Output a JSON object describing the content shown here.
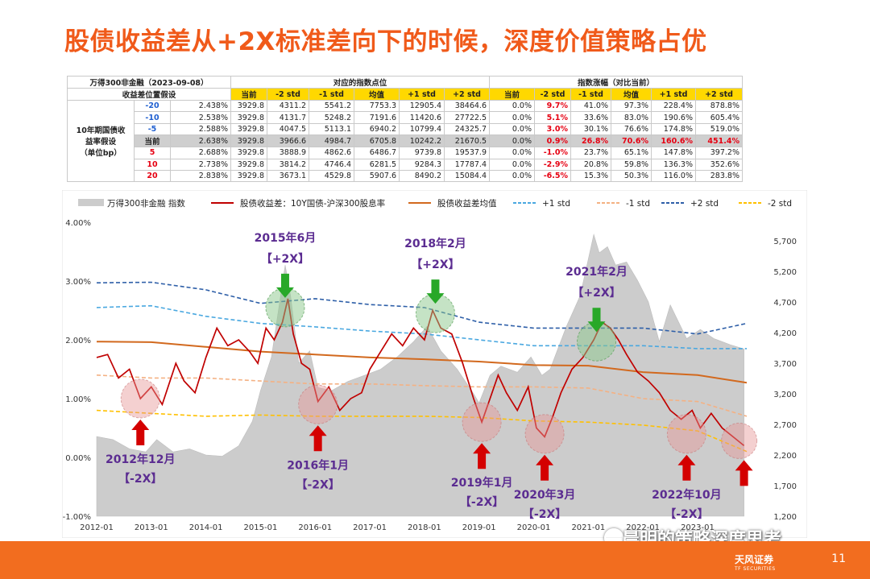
{
  "title": "股债收益差从+2X标准差向下的时候，深度价值策略占优",
  "table": {
    "index_label": "万得300非金融（2023-09-08）",
    "sec_points": "对应的指数点位",
    "sec_change": "指数涨幅（对比当前）",
    "assump_label": "收益差位置假设",
    "rowgroup_label_1": "10年期国债收",
    "rowgroup_label_2": "益率假设",
    "rowgroup_label_3": "（单位bp）",
    "cols": [
      "当前",
      "-2 std",
      "-1 std",
      "均值",
      "+1 std",
      "+2 std"
    ],
    "rows": [
      {
        "bp": "-20",
        "yield": "2.438%",
        "points": [
          "3929.8",
          "4311.2",
          "5541.2",
          "7753.3",
          "12905.4",
          "38464.6"
        ],
        "changes": [
          "0.0%",
          "9.7%",
          "41.0%",
          "97.3%",
          "228.4%",
          "878.8%"
        ]
      },
      {
        "bp": "-10",
        "yield": "2.538%",
        "points": [
          "3929.8",
          "4131.7",
          "5248.2",
          "7191.6",
          "11420.6",
          "27722.5"
        ],
        "changes": [
          "0.0%",
          "5.1%",
          "33.6%",
          "83.0%",
          "190.6%",
          "605.4%"
        ]
      },
      {
        "bp": "-5",
        "yield": "2.588%",
        "points": [
          "3929.8",
          "4047.5",
          "5113.1",
          "6940.2",
          "10799.4",
          "24325.7"
        ],
        "changes": [
          "0.0%",
          "3.0%",
          "30.1%",
          "76.6%",
          "174.8%",
          "519.0%"
        ]
      },
      {
        "bp": "当前",
        "yield": "2.638%",
        "points": [
          "3929.8",
          "3966.6",
          "4984.7",
          "6705.8",
          "10242.2",
          "21670.5"
        ],
        "changes": [
          "0.0%",
          "0.9%",
          "26.8%",
          "70.6%",
          "160.6%",
          "451.4%"
        ]
      },
      {
        "bp": "5",
        "yield": "2.688%",
        "points": [
          "3929.8",
          "3888.9",
          "4862.6",
          "6486.7",
          "9739.8",
          "19537.9"
        ],
        "changes": [
          "0.0%",
          "-1.0%",
          "23.7%",
          "65.1%",
          "147.8%",
          "397.2%"
        ]
      },
      {
        "bp": "10",
        "yield": "2.738%",
        "points": [
          "3929.8",
          "3814.2",
          "4746.4",
          "6281.5",
          "9284.3",
          "17787.4"
        ],
        "changes": [
          "0.0%",
          "-2.9%",
          "20.8%",
          "59.8%",
          "136.3%",
          "352.6%"
        ]
      },
      {
        "bp": "20",
        "yield": "2.838%",
        "points": [
          "3929.8",
          "3673.1",
          "4529.8",
          "5907.6",
          "8490.2",
          "15084.4"
        ],
        "changes": [
          "0.0%",
          "-6.5%",
          "15.3%",
          "50.3%",
          "116.0%",
          "283.8%"
        ]
      }
    ]
  },
  "chart_data": {
    "type": "line",
    "legend": [
      "万得300非金融 指数",
      "股债收益差：10Y国债-沪深300股息率",
      "股债收益差均值",
      "+1 std",
      "-1 std",
      "+2 std",
      "-2 std"
    ],
    "x_ticks": [
      "2012-01",
      "2013-01",
      "2014-01",
      "2015-01",
      "2016-01",
      "2017-01",
      "2018-01",
      "2019-01",
      "2020-01",
      "2021-01",
      "2022-01",
      "2023-01"
    ],
    "y_left_ticks": [
      "4.00%",
      "3.00%",
      "2.00%",
      "1.00%",
      "0.00%",
      "-1.00%"
    ],
    "y_left_range": [
      -1.0,
      4.0
    ],
    "y_right_ticks": [
      "5,700",
      "5,200",
      "4,700",
      "4,200",
      "3,700",
      "3,200",
      "2,700",
      "2,200",
      "1,700",
      "1,200"
    ],
    "y_right_range": [
      1200,
      6000
    ],
    "x_range": [
      2012.0,
      2023.9
    ],
    "colors": {
      "index": "#cccccc",
      "spread": "#c00000",
      "mean": "#d2691e",
      "p1": "#4aa8e0",
      "m1": "#f4b183",
      "p2": "#2e5fa8",
      "m2": "#ffc000"
    },
    "index_series": {
      "x": [
        2012.0,
        2012.3,
        2012.6,
        2012.9,
        2013.1,
        2013.4,
        2013.7,
        2014.0,
        2014.3,
        2014.6,
        2014.85,
        2015.0,
        2015.2,
        2015.35,
        2015.45,
        2015.55,
        2015.7,
        2015.9,
        2016.05,
        2016.3,
        2016.6,
        2016.9,
        2017.2,
        2017.5,
        2017.8,
        2018.05,
        2018.3,
        2018.6,
        2018.9,
        2019.0,
        2019.2,
        2019.4,
        2019.7,
        2019.95,
        2020.15,
        2020.3,
        2020.6,
        2020.85,
        2021.1,
        2021.2,
        2021.35,
        2021.5,
        2021.7,
        2021.9,
        2022.1,
        2022.3,
        2022.5,
        2022.8,
        2023.05,
        2023.3,
        2023.6,
        2023.85
      ],
      "y": [
        2500,
        2450,
        2300,
        2250,
        2450,
        2250,
        2300,
        2200,
        2180,
        2350,
        2750,
        3250,
        3800,
        4700,
        5300,
        4800,
        3700,
        3900,
        3300,
        3250,
        3400,
        3500,
        3600,
        3800,
        4050,
        4300,
        3900,
        3600,
        3200,
        3050,
        3500,
        3650,
        3550,
        3800,
        3500,
        3600,
        4300,
        4800,
        5800,
        5500,
        5600,
        5300,
        5350,
        5050,
        4700,
        4050,
        4650,
        4100,
        4250,
        4100,
        4000,
        3930
      ]
    },
    "spread_series": {
      "x": [
        2012.0,
        2012.2,
        2012.4,
        2012.6,
        2012.8,
        2013.0,
        2013.2,
        2013.45,
        2013.6,
        2013.8,
        2014.0,
        2014.2,
        2014.4,
        2014.6,
        2014.8,
        2014.95,
        2015.1,
        2015.25,
        2015.4,
        2015.5,
        2015.6,
        2015.75,
        2015.9,
        2016.05,
        2016.25,
        2016.45,
        2016.65,
        2016.85,
        2017.0,
        2017.2,
        2017.4,
        2017.6,
        2017.8,
        2018.0,
        2018.15,
        2018.3,
        2018.5,
        2018.7,
        2018.9,
        2019.05,
        2019.2,
        2019.35,
        2019.5,
        2019.7,
        2019.9,
        2020.05,
        2020.2,
        2020.35,
        2020.5,
        2020.7,
        2020.9,
        2021.1,
        2021.25,
        2021.4,
        2021.55,
        2021.7,
        2021.9,
        2022.1,
        2022.3,
        2022.5,
        2022.7,
        2022.9,
        2023.05,
        2023.25,
        2023.45,
        2023.65,
        2023.85
      ],
      "y": [
        1.7,
        1.75,
        1.35,
        1.5,
        1.0,
        1.2,
        0.9,
        1.6,
        1.3,
        1.1,
        1.7,
        2.2,
        1.9,
        2.0,
        1.8,
        1.6,
        2.2,
        2.0,
        2.3,
        2.7,
        2.1,
        1.6,
        1.5,
        0.95,
        1.2,
        0.8,
        1.0,
        1.1,
        1.5,
        1.8,
        2.1,
        1.9,
        2.2,
        2.0,
        2.5,
        2.2,
        2.1,
        1.6,
        1.0,
        0.6,
        1.0,
        1.4,
        1.1,
        0.8,
        1.2,
        0.5,
        0.35,
        0.7,
        1.1,
        1.5,
        1.7,
        2.0,
        2.3,
        2.2,
        2.0,
        1.75,
        1.45,
        1.3,
        1.1,
        0.8,
        0.65,
        0.8,
        0.5,
        0.75,
        0.5,
        0.35,
        0.2
      ]
    },
    "mean_series": {
      "x": [
        2012.0,
        2013.0,
        2014.0,
        2015.0,
        2016.0,
        2017.0,
        2018.0,
        2019.0,
        2020.0,
        2021.0,
        2022.0,
        2023.0,
        2023.9
      ],
      "y": [
        1.97,
        1.96,
        1.88,
        1.8,
        1.75,
        1.7,
        1.67,
        1.63,
        1.57,
        1.56,
        1.45,
        1.4,
        1.27
      ]
    },
    "p1_series": {
      "x": [
        2012.0,
        2013.0,
        2014.0,
        2015.0,
        2016.0,
        2017.0,
        2018.0,
        2019.0,
        2020.0,
        2021.0,
        2022.0,
        2023.0,
        2023.9
      ],
      "y": [
        2.55,
        2.58,
        2.4,
        2.28,
        2.22,
        2.15,
        2.1,
        2.0,
        1.9,
        1.9,
        1.9,
        1.85,
        1.85
      ]
    },
    "m1_series": {
      "x": [
        2012.0,
        2013.0,
        2014.0,
        2015.0,
        2016.0,
        2017.0,
        2018.0,
        2019.0,
        2020.0,
        2021.0,
        2022.0,
        2023.0,
        2023.9
      ],
      "y": [
        1.4,
        1.35,
        1.35,
        1.3,
        1.25,
        1.25,
        1.22,
        1.2,
        1.2,
        1.18,
        1.0,
        0.95,
        0.7
      ]
    },
    "p2_series": {
      "x": [
        2012.0,
        2013.0,
        2014.0,
        2015.0,
        2016.0,
        2017.0,
        2018.0,
        2019.0,
        2020.0,
        2021.0,
        2022.0,
        2023.0,
        2023.9
      ],
      "y": [
        2.97,
        2.98,
        2.85,
        2.62,
        2.7,
        2.6,
        2.55,
        2.3,
        2.2,
        2.2,
        2.2,
        2.1,
        2.28
      ]
    },
    "m2_series": {
      "x": [
        2012.0,
        2013.0,
        2014.0,
        2015.0,
        2016.0,
        2017.0,
        2018.0,
        2019.0,
        2020.0,
        2021.0,
        2022.0,
        2023.0,
        2023.9
      ],
      "y": [
        0.8,
        0.75,
        0.7,
        0.72,
        0.7,
        0.7,
        0.7,
        0.68,
        0.62,
        0.6,
        0.55,
        0.45,
        0.1
      ]
    },
    "annotations": [
      {
        "label": "2015年6月",
        "tag": "【+2X】",
        "x": 2015.45,
        "y": 2.55,
        "dir": "down"
      },
      {
        "label": "2018年2月",
        "tag": "【+2X】",
        "x": 2018.2,
        "y": 2.45,
        "dir": "down"
      },
      {
        "label": "2021年2月",
        "tag": "【+2X】",
        "x": 2021.15,
        "y": 1.97,
        "dir": "down"
      },
      {
        "label": "2012年12月",
        "tag": "【-2X】",
        "x": 2012.8,
        "y": 1.0,
        "dir": "up"
      },
      {
        "label": "2016年1月",
        "tag": "【-2X】",
        "x": 2016.05,
        "y": 0.9,
        "dir": "up"
      },
      {
        "label": "2019年1月",
        "tag": "【-2X】",
        "x": 2019.05,
        "y": 0.6,
        "dir": "up"
      },
      {
        "label": "2020年3月",
        "tag": "【-2X】",
        "x": 2020.2,
        "y": 0.4,
        "dir": "up"
      },
      {
        "label": "2022年10月",
        "tag": "【-2X】",
        "x": 2022.8,
        "y": 0.4,
        "dir": "up"
      }
    ],
    "extra_down_arrow": {
      "x": 2023.85,
      "y": 0.2
    }
  },
  "footer": {
    "page": "11",
    "brand": "天风证券",
    "brand_en": "TF SECURITIES",
    "watermark": "晨明的策略深度思考"
  }
}
